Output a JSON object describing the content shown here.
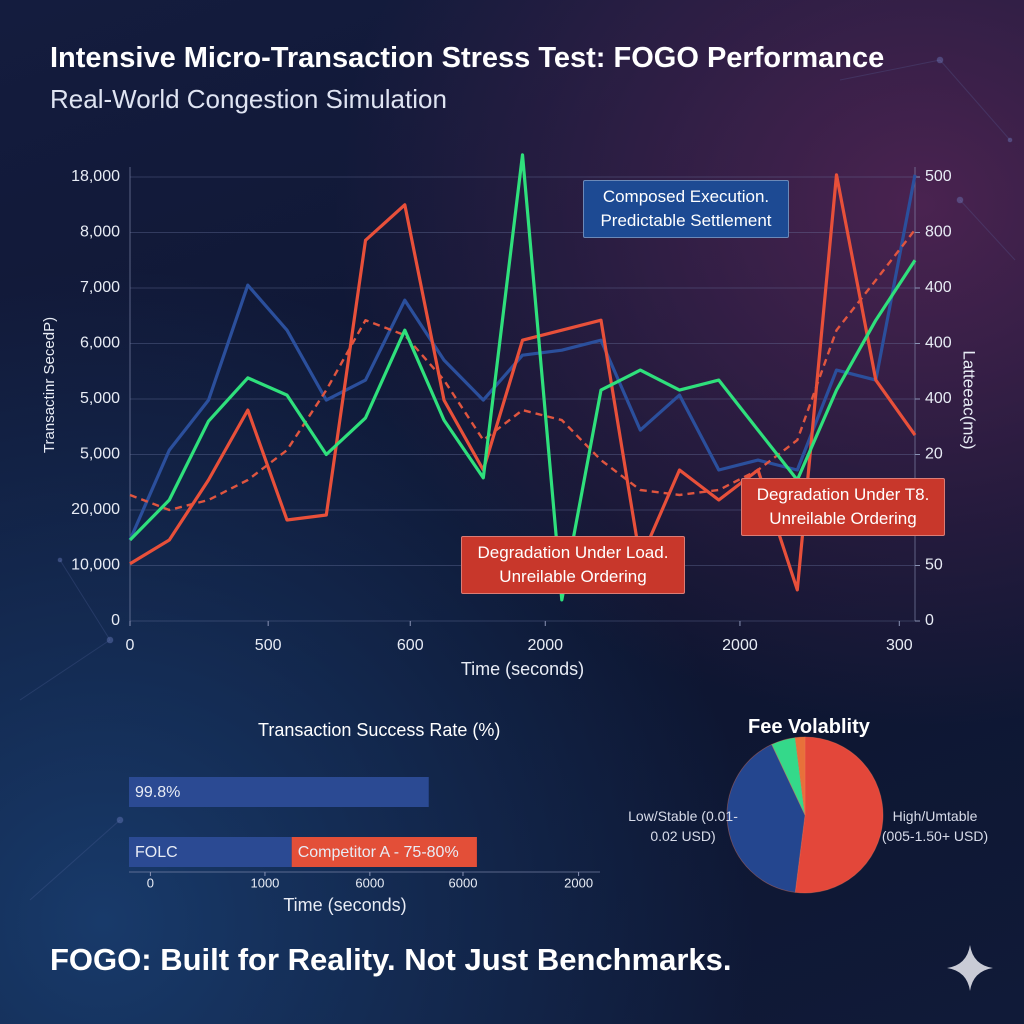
{
  "chart_data": [
    {
      "type": "line",
      "title": "Intensive Micro-Transaction Stress Test: FOGO Performance",
      "subtitle": "Real-World Congestion Simulation",
      "xlabel": "Time (seconds)",
      "ylabel": "Transactinr SecedP)",
      "y2label": "Latteeac(ms)",
      "x": [
        0,
        5,
        10,
        15,
        20,
        25,
        30,
        35,
        40,
        45,
        50,
        55,
        60,
        65,
        70,
        75,
        80,
        85,
        90,
        95,
        100
      ],
      "xlim": [
        0,
        100
      ],
      "xticks": [
        0,
        {
          "value": 17.6,
          "label": "500"
        },
        {
          "value": 35.7,
          "label": "600"
        },
        {
          "value": 52.9,
          "label": "2000"
        },
        {
          "value": 77.7,
          "label": "2000"
        },
        {
          "value": 98,
          "label": "300"
        }
      ],
      "ylim": [
        0,
        8
      ],
      "yticks": [
        0,
        {
          "value": 1,
          "label": "10,000"
        },
        {
          "value": 2,
          "label": "20,000"
        },
        {
          "value": 3,
          "label": "5,000"
        },
        {
          "value": 4,
          "label": "5,000"
        },
        {
          "value": 5,
          "label": "6,000"
        },
        {
          "value": 6,
          "label": "7,000"
        },
        {
          "value": 7,
          "label": "8,000"
        },
        {
          "value": 8,
          "label": "18,000"
        }
      ],
      "y2lim": [
        0,
        8
      ],
      "y2ticks": [
        0,
        {
          "value": 1,
          "label": "50"
        },
        {
          "value": 3,
          "label": "20"
        },
        {
          "value": 4,
          "label": "400"
        },
        {
          "value": 5,
          "label": "400"
        },
        {
          "value": 6,
          "label": "400"
        },
        {
          "value": 7,
          "label": "800"
        },
        {
          "value": 8,
          "label": "500"
        }
      ],
      "grid": true,
      "series": [
        {
          "color": "#2b4f9c",
          "dash": false,
          "values": [
            1.46,
            3.08,
            3.98,
            6.05,
            5.24,
            3.98,
            4.34,
            5.78,
            4.7,
            3.98,
            4.79,
            4.88,
            5.06,
            3.44,
            4.07,
            2.72,
            2.9,
            2.72,
            4.52,
            4.34,
            8.04
          ]
        },
        {
          "color": "#e0553f",
          "dash": true,
          "values": [
            2.27,
            2.0,
            2.18,
            2.54,
            3.08,
            4.16,
            5.42,
            5.15,
            4.34,
            3.26,
            3.8,
            3.62,
            2.9,
            2.36,
            2.27,
            2.36,
            2.72,
            3.26,
            5.24,
            6.14,
            7.05
          ]
        },
        {
          "color": "#e8503a",
          "dash": false,
          "values": [
            1.03,
            1.46,
            2.54,
            3.8,
            1.82,
            1.91,
            6.86,
            7.5,
            3.98,
            2.72,
            5.06,
            5.24,
            5.42,
            1.1,
            2.72,
            2.18,
            2.72,
            0.56,
            8.04,
            4.34,
            3.35
          ]
        },
        {
          "color": "#2fe07c",
          "dash": false,
          "values": [
            1.46,
            2.18,
            3.6,
            4.38,
            4.07,
            3.0,
            3.66,
            5.24,
            3.62,
            2.58,
            8.4,
            0.38,
            4.16,
            4.52,
            4.16,
            4.34,
            3.44,
            2.54,
            4.16,
            5.42,
            6.5
          ]
        }
      ],
      "annotations": [
        {
          "text": "Composed Execution. Predictable Settlement",
          "color": "#1d4a93"
        },
        {
          "text": "Degradation Under Load. Unreilable Ordering",
          "color": "#c8372b"
        },
        {
          "text": "Degradation Under T8. Unreilable Ordering",
          "color": "#c8372b"
        }
      ]
    },
    {
      "type": "hbar-stacked",
      "title": "Transaction Success Rate (%)",
      "xlabel": "Time (seconds)",
      "categories": [
        null,
        null
      ],
      "xlim": [
        -0.2,
        4.2
      ],
      "xticks": [
        0,
        {
          "value": 1.07,
          "label": "1000"
        },
        {
          "value": 2.05,
          "label": "6000"
        },
        {
          "value": 2.92,
          "label": "6000"
        },
        {
          "value": 4,
          "label": "2000"
        }
      ],
      "series": [
        {
          "name": "99.8%",
          "color": "#2b4a93",
          "values": [
            2.8,
            null
          ]
        },
        {
          "name": "FOLC",
          "color": "#2b4a93",
          "values": [
            null,
            1.52
          ]
        },
        {
          "name": "Competitor A - 75-80%",
          "color": "#e34f38",
          "values": [
            null,
            1.73
          ]
        }
      ]
    },
    {
      "type": "pie",
      "title": "Fee Volablity",
      "categories": [
        "High/Umtable (005-1.50+ USD)",
        "Low/Stable (0.01-0.02 USD)",
        null,
        null
      ],
      "values": [
        52,
        41,
        5,
        2
      ],
      "colors": [
        "#e3473a",
        "#24468f",
        "#34d98a",
        "#e8703a"
      ]
    }
  ],
  "footer": "FOGO: Built for Reality. Not Just Benchmarks."
}
